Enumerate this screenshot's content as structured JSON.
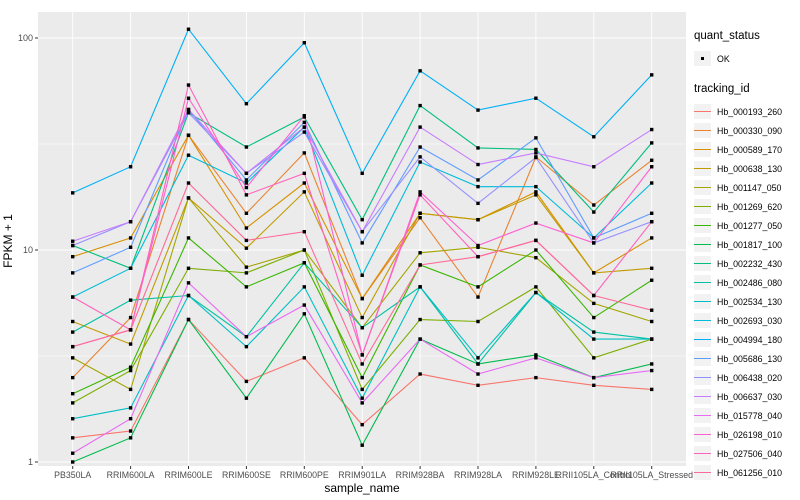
{
  "figure": {
    "x_axis_title": "sample_name",
    "y_axis_title": "FPKM + 1"
  },
  "legend": {
    "quant_status": {
      "title": "quant_status",
      "items": [
        {
          "label": "OK"
        }
      ]
    },
    "tracking_id": {
      "title": "tracking_id"
    }
  },
  "colors": {
    "panel_background": "#EBEBEB",
    "gridline": "#FFFFFF",
    "axis_text": "#4D4D4D",
    "tick_mark": "#333333",
    "point": "#000000",
    "legend_key_background": "#F2F2F2"
  },
  "chart_data": {
    "type": "line",
    "x_type": "categorical",
    "y_scale": "log10",
    "grid": true,
    "legend_position": "right",
    "xlabel": "sample_name",
    "ylabel": "FPKM + 1",
    "y_ticks": [
      1,
      10,
      100
    ],
    "ylim": [
      1,
      130
    ],
    "point_shape": "filled-black-square",
    "categories": [
      "PB350LA",
      "RRIM600LA",
      "RRIM600LE",
      "RRIM600SE",
      "RRIM600PE",
      "RRIM901LA",
      "RRIM928BA",
      "RRIM928LA",
      "RRIM928LE",
      "RRII105LA_Control",
      "RRII105LA_Stressed"
    ],
    "series": [
      {
        "name": "Hb_000193_260",
        "color": "#F8766D",
        "values": [
          1.3,
          1.4,
          4.7,
          2.4,
          3.1,
          1.5,
          2.6,
          2.3,
          2.5,
          2.3,
          2.2
        ]
      },
      {
        "name": "Hb_000330_090",
        "color": "#EA8331",
        "values": [
          2.5,
          4.8,
          34.8,
          14.9,
          28.7,
          5.9,
          14.2,
          6.0,
          27.5,
          16.3,
          26.5
        ]
      },
      {
        "name": "Hb_000589_170",
        "color": "#D89000",
        "values": [
          9.3,
          11.4,
          34.8,
          12.7,
          20.7,
          5.9,
          14.9,
          13.9,
          18.8,
          7.8,
          11.4
        ]
      },
      {
        "name": "Hb_000638_130",
        "color": "#C09B00",
        "values": [
          4.6,
          3.6,
          17.6,
          10.2,
          18.8,
          4.8,
          14.9,
          13.9,
          18.2,
          7.8,
          8.2
        ]
      },
      {
        "name": "Hb_001147_050",
        "color": "#A3A500",
        "values": [
          3.1,
          2.2,
          17.6,
          8.3,
          10.0,
          4.3,
          9.7,
          10.3,
          9.2,
          5.6,
          4.6
        ]
      },
      {
        "name": "Hb_001269_620",
        "color": "#7CAE00",
        "values": [
          1.9,
          2.7,
          8.2,
          7.8,
          10.0,
          2.2,
          4.7,
          4.6,
          6.7,
          3.1,
          3.8
        ]
      },
      {
        "name": "Hb_001277_050",
        "color": "#39B600",
        "values": [
          2.1,
          2.8,
          11.4,
          6.7,
          8.7,
          2.5,
          8.5,
          6.7,
          10.0,
          4.8,
          7.2
        ]
      },
      {
        "name": "Hb_001817_100",
        "color": "#00BB4E",
        "values": [
          1.0,
          1.3,
          4.7,
          2.0,
          5.0,
          1.2,
          3.8,
          2.9,
          3.2,
          2.5,
          2.9
        ]
      },
      {
        "name": "Hb_002232_430",
        "color": "#00BF7D",
        "values": [
          10.5,
          8.2,
          44.4,
          30.6,
          42.4,
          13.9,
          48.0,
          30.3,
          29.8,
          15.1,
          32.0
        ]
      },
      {
        "name": "Hb_002486_080",
        "color": "#00C1A3",
        "values": [
          4.1,
          5.8,
          6.1,
          3.9,
          8.7,
          4.3,
          6.7,
          2.9,
          6.3,
          4.1,
          3.8
        ]
      },
      {
        "name": "Hb_002534_130",
        "color": "#00BFC4",
        "values": [
          1.6,
          1.8,
          6.1,
          3.5,
          6.7,
          2.0,
          6.7,
          3.1,
          6.3,
          3.8,
          3.8
        ]
      },
      {
        "name": "Hb_002693_030",
        "color": "#00BBDA",
        "values": [
          6.0,
          8.2,
          28.0,
          20.7,
          38.0,
          7.6,
          26.0,
          19.9,
          19.9,
          11.4,
          20.7
        ]
      },
      {
        "name": "Hb_004994_180",
        "color": "#00B0F6",
        "values": [
          18.6,
          24.7,
          110.0,
          49.0,
          95.0,
          23.0,
          70.0,
          45.7,
          52.0,
          34.2,
          67.0
        ]
      },
      {
        "name": "Hb_005686_130",
        "color": "#619CFF",
        "values": [
          7.8,
          10.3,
          46.0,
          21.4,
          40.0,
          10.8,
          30.6,
          21.4,
          33.8,
          11.4,
          14.9
        ]
      },
      {
        "name": "Hb_006438_020",
        "color": "#9590FF",
        "values": [
          10.5,
          13.6,
          44.4,
          23.0,
          36.0,
          12.2,
          27.5,
          16.6,
          27.3,
          10.8,
          13.6
        ]
      },
      {
        "name": "Hb_006637_030",
        "color": "#C77CFF",
        "values": [
          11.0,
          13.6,
          46.0,
          23.0,
          38.0,
          12.2,
          38.0,
          25.3,
          28.7,
          24.7,
          37.0
        ]
      },
      {
        "name": "Hb_015778_040",
        "color": "#E76BF3",
        "values": [
          1.1,
          1.6,
          7.0,
          3.9,
          5.5,
          1.9,
          3.8,
          2.6,
          3.1,
          2.5,
          2.7
        ]
      },
      {
        "name": "Hb_026198_010",
        "color": "#FD61D1",
        "values": [
          3.5,
          4.2,
          52.0,
          19.7,
          43.0,
          3.2,
          18.8,
          10.5,
          13.4,
          10.8,
          24.7
        ]
      },
      {
        "name": "Hb_027506_040",
        "color": "#FF62BC",
        "values": [
          6.0,
          4.2,
          60.0,
          18.2,
          23.0,
          3.2,
          18.2,
          9.3,
          11.1,
          6.1,
          13.6
        ]
      },
      {
        "name": "Hb_061256_010",
        "color": "#FF6A98",
        "values": [
          3.5,
          4.2,
          20.7,
          11.1,
          12.2,
          2.9,
          8.5,
          9.3,
          11.1,
          6.1,
          5.2
        ]
      }
    ]
  }
}
